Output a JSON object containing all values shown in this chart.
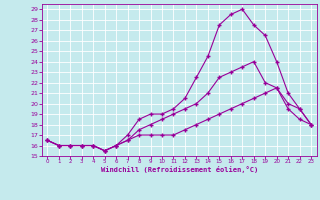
{
  "xlabel": "Windchill (Refroidissement éolien,°C)",
  "background_color": "#c5eaed",
  "grid_color": "#ffffff",
  "line_color": "#990099",
  "line1": [
    16.5,
    16.0,
    16.0,
    16.0,
    16.0,
    15.5,
    16.0,
    17.0,
    18.5,
    19.0,
    19.0,
    19.5,
    20.5,
    22.5,
    24.5,
    27.5,
    28.5,
    29.0,
    27.5,
    26.5,
    24.0,
    21.0,
    19.5,
    18.0
  ],
  "line2": [
    16.5,
    16.0,
    16.0,
    16.0,
    16.0,
    15.5,
    16.0,
    16.5,
    17.5,
    18.0,
    18.5,
    19.0,
    19.5,
    20.0,
    21.0,
    22.5,
    23.0,
    23.5,
    24.0,
    22.0,
    21.5,
    20.0,
    19.5,
    18.0
  ],
  "line3": [
    16.5,
    16.0,
    16.0,
    16.0,
    16.0,
    15.5,
    16.0,
    16.5,
    17.0,
    17.0,
    17.0,
    17.0,
    17.5,
    18.0,
    18.5,
    19.0,
    19.5,
    20.0,
    20.5,
    21.0,
    21.5,
    19.5,
    18.5,
    18.0
  ],
  "ylim": [
    15,
    29.5
  ],
  "xlim": [
    -0.5,
    23.5
  ],
  "yticks": [
    15,
    16,
    17,
    18,
    19,
    20,
    21,
    22,
    23,
    24,
    25,
    26,
    27,
    28,
    29
  ],
  "xticks": [
    0,
    1,
    2,
    3,
    4,
    5,
    6,
    7,
    8,
    9,
    10,
    11,
    12,
    13,
    14,
    15,
    16,
    17,
    18,
    19,
    20,
    21,
    22,
    23
  ]
}
